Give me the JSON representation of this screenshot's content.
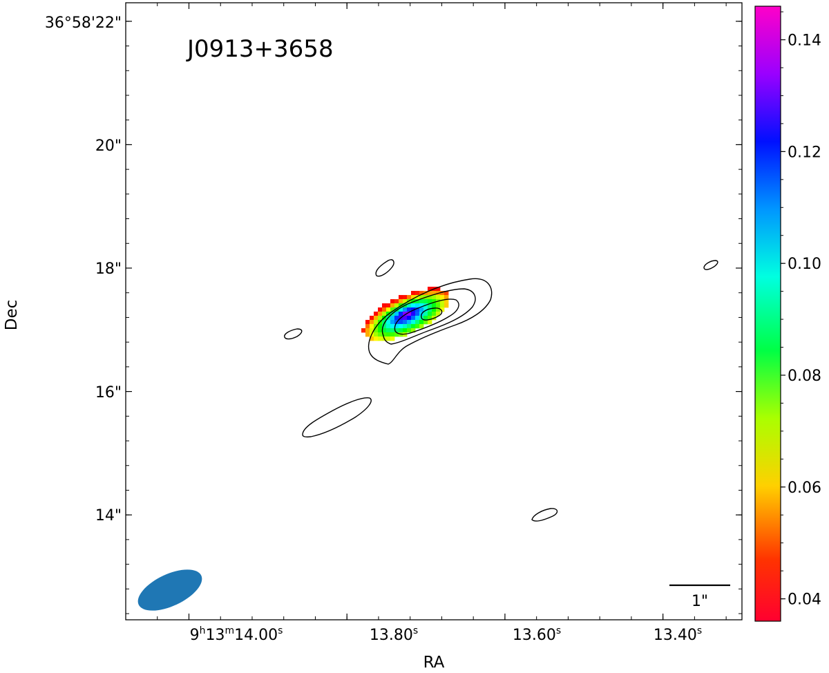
{
  "chart_data": {
    "type": "heatmap",
    "title": "",
    "source_name": "J0913+3658",
    "xlabel": "RA",
    "ylabel": "Dec",
    "x_ticks": [
      {
        "value": 14.0,
        "label_main": "9",
        "sup1": "h",
        "mid": "13",
        "sup2": "m",
        "tail": "14.00",
        "sup3": "s"
      },
      {
        "value": 13.8,
        "label": "13.80",
        "sup": "s"
      },
      {
        "value": 13.6,
        "label": "13.60",
        "sup": "s"
      },
      {
        "value": 13.4,
        "label": "13.40",
        "sup": "s"
      }
    ],
    "y_ticks": [
      {
        "value": 22,
        "label": "36°58'22\""
      },
      {
        "value": 20,
        "label": "20\""
      },
      {
        "value": 18,
        "label": "18\""
      },
      {
        "value": 16,
        "label": "16\""
      },
      {
        "value": 14,
        "label": "14\""
      }
    ],
    "xlim": [
      14.08,
      13.3
    ],
    "ylim": [
      12.3,
      22.3
    ],
    "colorbar": {
      "range": [
        0.036,
        0.146
      ],
      "ticks": [
        "0.04",
        "0.06",
        "0.08",
        "0.10",
        "0.12",
        "0.14"
      ],
      "tick_values": [
        0.04,
        0.06,
        0.08,
        0.1,
        0.12,
        0.14
      ],
      "colormap": "gist_rainbow"
    },
    "scale_bar_label": "1\"",
    "beam_color": "#1f77b4",
    "contour_color": "#000000",
    "source_peak": {
      "ra_s": 13.725,
      "dec_arcsec": 17.25
    },
    "value_range_in_source": [
      0.04,
      0.14
    ]
  }
}
